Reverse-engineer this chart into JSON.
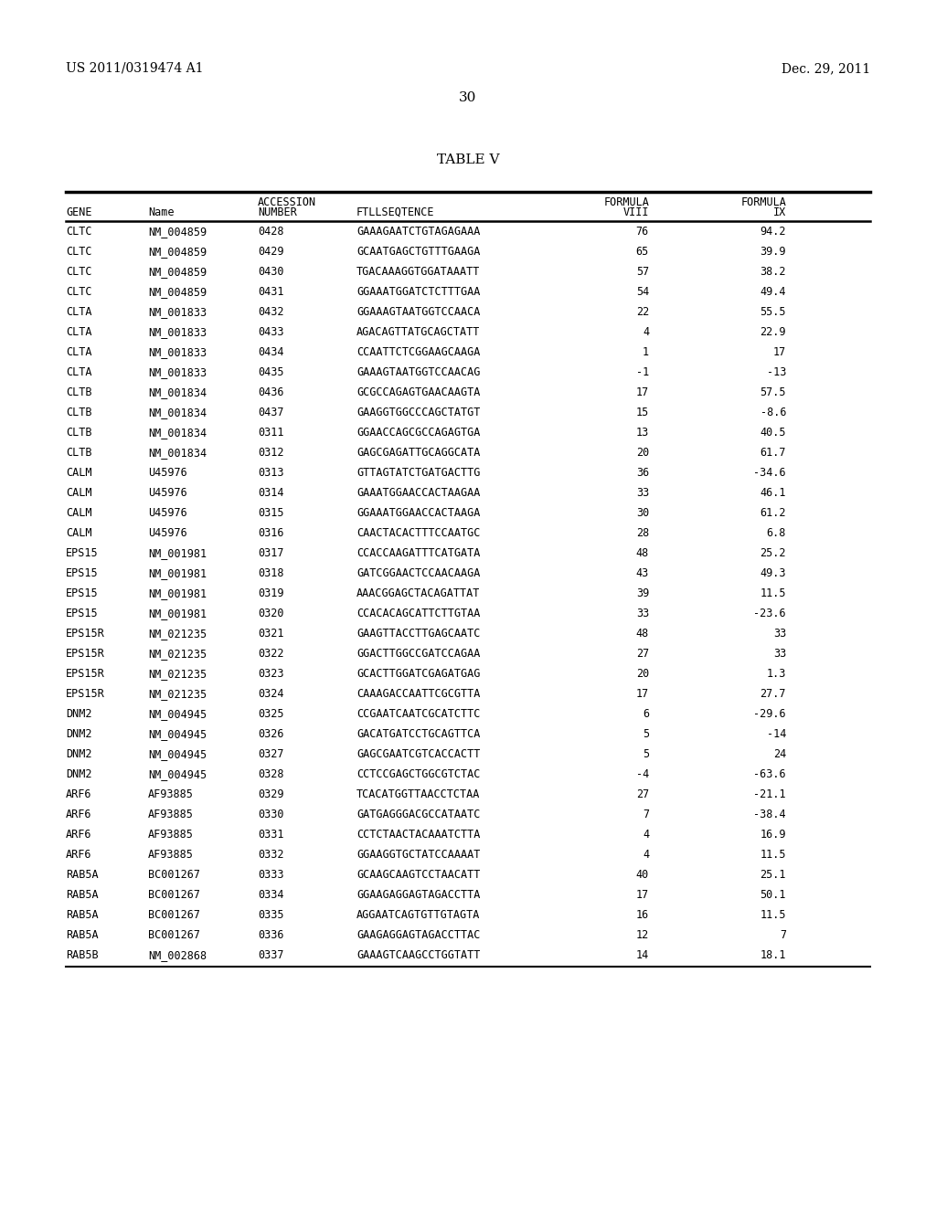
{
  "header_left": "US 2011/0319474 A1",
  "header_right": "Dec. 29, 2011",
  "page_number": "30",
  "table_title": "TABLE V",
  "rows": [
    [
      "CLTC",
      "NM_004859",
      "0428",
      "GAAAGAATCTGTAGAGAAA",
      "76",
      "94.2"
    ],
    [
      "CLTC",
      "NM_004859",
      "0429",
      "GCAATGAGCTGTTTGAAGA",
      "65",
      "39.9"
    ],
    [
      "CLTC",
      "NM_004859",
      "0430",
      "TGACAAAGGTGGATAAATT",
      "57",
      "38.2"
    ],
    [
      "CLTC",
      "NM_004859",
      "0431",
      "GGAAATGGATCTCTTTGAA",
      "54",
      "49.4"
    ],
    [
      "CLTA",
      "NM_001833",
      "0432",
      "GGAAAGTAATGGTCCAACA",
      "22",
      "55.5"
    ],
    [
      "CLTA",
      "NM_001833",
      "0433",
      "AGACAGTTATGCAGCTATT",
      "4",
      "22.9"
    ],
    [
      "CLTA",
      "NM_001833",
      "0434",
      "CCAATTCTCGGAAGCAAGA",
      "1",
      "17"
    ],
    [
      "CLTA",
      "NM_001833",
      "0435",
      "GAAAGTAATGGTCCAACAG",
      "-1",
      "-13"
    ],
    [
      "CLTB",
      "NM_001834",
      "0436",
      "GCGCCAGAGTGAACAAGTA",
      "17",
      "57.5"
    ],
    [
      "CLTB",
      "NM_001834",
      "0437",
      "GAAGGTGGCCCAGCTATGT",
      "15",
      "-8.6"
    ],
    [
      "CLTB",
      "NM_001834",
      "0311",
      "GGAACCAGCGCCAGAGTGA",
      "13",
      "40.5"
    ],
    [
      "CLTB",
      "NM_001834",
      "0312",
      "GAGCGAGATTGCAGGCATA",
      "20",
      "61.7"
    ],
    [
      "CALM",
      "U45976",
      "0313",
      "GTTAGTATCTGATGACTTG",
      "36",
      "-34.6"
    ],
    [
      "CALM",
      "U45976",
      "0314",
      "GAAATGGAACCACTAAGAA",
      "33",
      "46.1"
    ],
    [
      "CALM",
      "U45976",
      "0315",
      "GGAAATGGAACCACTAAGA",
      "30",
      "61.2"
    ],
    [
      "CALM",
      "U45976",
      "0316",
      "CAACTACACTTTCCAATGC",
      "28",
      "6.8"
    ],
    [
      "EPS15",
      "NM_001981",
      "0317",
      "CCACCAAGATTTCATGATA",
      "48",
      "25.2"
    ],
    [
      "EPS15",
      "NM_001981",
      "0318",
      "GATCGGAACTCCAACAAGA",
      "43",
      "49.3"
    ],
    [
      "EPS15",
      "NM_001981",
      "0319",
      "AAACGGAGCTACAGATTAT",
      "39",
      "11.5"
    ],
    [
      "EPS15",
      "NM_001981",
      "0320",
      "CCACACAGCATTCTTGTAA",
      "33",
      "-23.6"
    ],
    [
      "EPS15R",
      "NM_021235",
      "0321",
      "GAAGTTACCTTGAGCAATC",
      "48",
      "33"
    ],
    [
      "EPS15R",
      "NM_021235",
      "0322",
      "GGACTTGGCCGATCCAGAA",
      "27",
      "33"
    ],
    [
      "EPS15R",
      "NM_021235",
      "0323",
      "GCACTTGGATCGAGATGAG",
      "20",
      "1.3"
    ],
    [
      "EPS15R",
      "NM_021235",
      "0324",
      "CAAAGACCAATTCGCGTTA",
      "17",
      "27.7"
    ],
    [
      "DNM2",
      "NM_004945",
      "0325",
      "CCGAATCAATCGCATCTTC",
      "6",
      "-29.6"
    ],
    [
      "DNM2",
      "NM_004945",
      "0326",
      "GACATGATCCTGCAGTTCA",
      "5",
      "-14"
    ],
    [
      "DNM2",
      "NM_004945",
      "0327",
      "GAGCGAATCGTCACCACTT",
      "5",
      "24"
    ],
    [
      "DNM2",
      "NM_004945",
      "0328",
      "CCTCCGAGCTGGCGTCTAC",
      "-4",
      "-63.6"
    ],
    [
      "ARF6",
      "AF93885",
      "0329",
      "TCACATGGTTAACCTCTAA",
      "27",
      "-21.1"
    ],
    [
      "ARF6",
      "AF93885",
      "0330",
      "GATGAGGGACGCCATAATC",
      "7",
      "-38.4"
    ],
    [
      "ARF6",
      "AF93885",
      "0331",
      "CCTCTAACTACAAATCTTA",
      "4",
      "16.9"
    ],
    [
      "ARF6",
      "AF93885",
      "0332",
      "GGAAGGTGCTATCCAAAAT",
      "4",
      "11.5"
    ],
    [
      "RAB5A",
      "BC001267",
      "0333",
      "GCAAGCAAGTCCTAACATT",
      "40",
      "25.1"
    ],
    [
      "RAB5A",
      "BC001267",
      "0334",
      "GGAAGAGGAGTAGACCTTA",
      "17",
      "50.1"
    ],
    [
      "RAB5A",
      "BC001267",
      "0335",
      "AGGAATCAGTGTTGTAGTA",
      "16",
      "11.5"
    ],
    [
      "RAB5A",
      "BC001267",
      "0336",
      "GAAGAGGAGTAGACCTTAC",
      "12",
      "7"
    ],
    [
      "RAB5B",
      "NM_002868",
      "0337",
      "GAAAGTCAAGCCTGGTATT",
      "14",
      "18.1"
    ]
  ],
  "bg_color": "#ffffff",
  "text_color": "#000000",
  "fs_page_header": 10,
  "fs_table_title": 11,
  "fs_col_header": 8.5,
  "fs_body": 8.5
}
